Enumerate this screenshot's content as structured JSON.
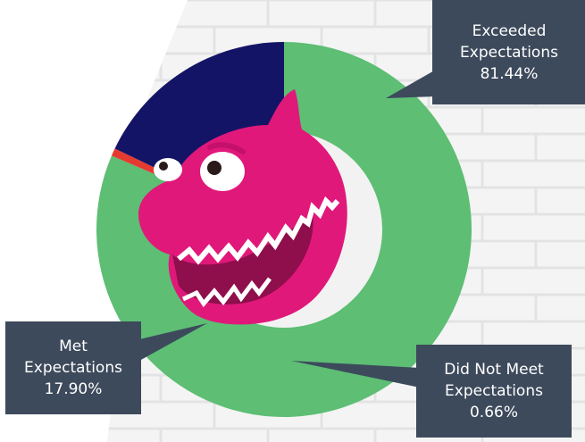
{
  "chart_data": {
    "type": "pie",
    "title": "",
    "slices": [
      {
        "label_lines": [
          "Exceeded",
          "Expectations"
        ],
        "value": 81.44,
        "value_text": "81.44%",
        "color": "#5dbe74"
      },
      {
        "label_lines": [
          "Did Not Meet",
          "Expectations"
        ],
        "value": 0.66,
        "value_text": "0.66%",
        "color": "#e53a2f"
      },
      {
        "label_lines": [
          "Met",
          "Expectations"
        ],
        "value": 17.9,
        "value_text": "17.90%",
        "color": "#141466"
      }
    ],
    "start_angle_deg": 0,
    "direction": "clockwise",
    "donut": true
  },
  "colors": {
    "callout_bg": "#3d4a5c",
    "callout_text": "#ffffff",
    "brick_wall": "#f3f3f3",
    "mascot": "#e0187a"
  },
  "center_image": "pink-shark-puppet"
}
